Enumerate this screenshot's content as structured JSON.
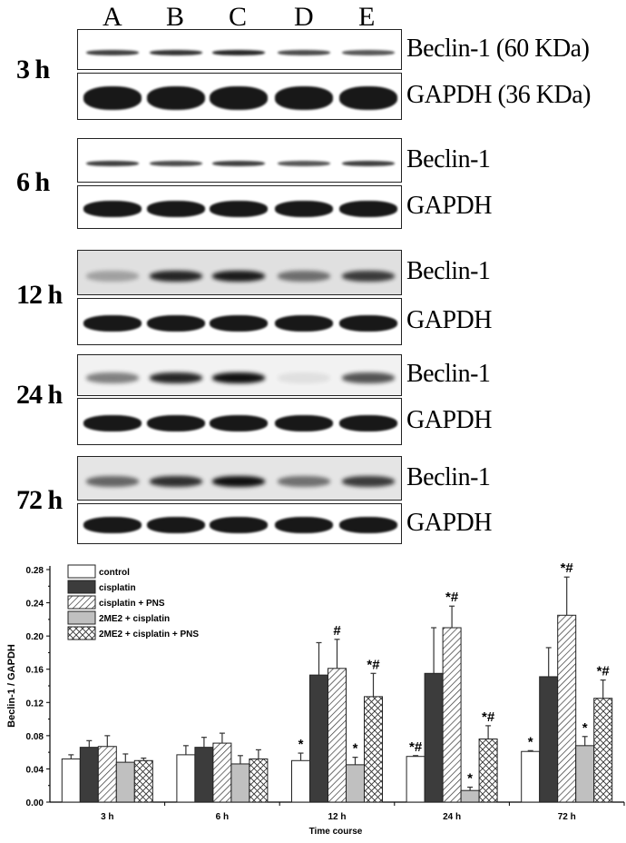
{
  "blot": {
    "lanes": [
      "A",
      "B",
      "C",
      "D",
      "E"
    ],
    "groups": [
      {
        "time": "3 h",
        "beclin_label": "Beclin-1 (60 KDa)",
        "gapdh_label": "GAPDH (36 KDa)"
      },
      {
        "time": "6 h",
        "beclin_label": "Beclin-1",
        "gapdh_label": "GAPDH"
      },
      {
        "time": "12 h",
        "beclin_label": "Beclin-1",
        "gapdh_label": "GAPDH"
      },
      {
        "time": "24 h",
        "beclin_label": "Beclin-1",
        "gapdh_label": "GAPDH"
      },
      {
        "time": "72 h",
        "beclin_label": "Beclin-1",
        "gapdh_label": "GAPDH"
      }
    ]
  },
  "chart_data": {
    "type": "bar",
    "xlabel": "Time course",
    "ylabel": "Beclin-1 / GAPDH",
    "ylim": [
      0,
      0.28
    ],
    "yticks": [
      "0.00",
      "0.04",
      "0.08",
      "0.12",
      "0.16",
      "0.20",
      "0.24",
      "0.28"
    ],
    "categories": [
      "3 h",
      "6 h",
      "12 h",
      "24 h",
      "72 h"
    ],
    "legend_placement": "top-left",
    "series": [
      {
        "name": "control",
        "fill": "white",
        "values": [
          0.052,
          0.057,
          0.05,
          0.055,
          0.061
        ],
        "errors": [
          0.005,
          0.011,
          0.009,
          0.001,
          0.001
        ],
        "annotations": [
          "",
          "",
          "*",
          "*#",
          "*"
        ]
      },
      {
        "name": "cisplatin",
        "fill": "#3c3c3c",
        "values": [
          0.066,
          0.066,
          0.153,
          0.155,
          0.151
        ],
        "errors": [
          0.008,
          0.012,
          0.039,
          0.055,
          0.035
        ],
        "annotations": [
          "",
          "",
          "",
          "",
          ""
        ]
      },
      {
        "name": "cisplatin + PNS",
        "fill": "diagonal-hatch",
        "values": [
          0.067,
          0.071,
          0.161,
          0.21,
          0.225
        ],
        "errors": [
          0.013,
          0.012,
          0.035,
          0.026,
          0.046
        ],
        "annotations": [
          "",
          "",
          "#",
          "*#",
          "*#"
        ]
      },
      {
        "name": "2ME2 + cisplatin",
        "fill": "#c0c0c0",
        "values": [
          0.048,
          0.046,
          0.045,
          0.014,
          0.068
        ],
        "errors": [
          0.01,
          0.01,
          0.009,
          0.004,
          0.011
        ],
        "annotations": [
          "",
          "",
          "*",
          "*",
          "*"
        ]
      },
      {
        "name": "2ME2 + cisplatin + PNS",
        "fill": "cross-hatch",
        "values": [
          0.05,
          0.052,
          0.127,
          0.076,
          0.125
        ],
        "errors": [
          0.003,
          0.011,
          0.028,
          0.016,
          0.022
        ],
        "annotations": [
          "",
          "",
          "*#",
          "*#",
          "*#"
        ]
      }
    ]
  }
}
